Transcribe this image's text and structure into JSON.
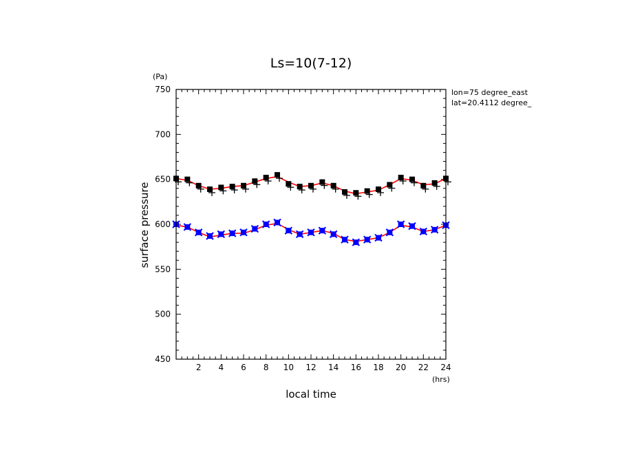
{
  "chart_data": {
    "type": "line",
    "title": "Ls=10(7-12)",
    "xlabel": "local time",
    "ylabel": "surface pressure",
    "x_unit": "(hrs)",
    "y_unit": "(Pa)",
    "xlim": [
      0,
      24
    ],
    "ylim": [
      450,
      750
    ],
    "x_ticks": [
      2,
      4,
      6,
      8,
      10,
      12,
      14,
      16,
      18,
      20,
      22,
      24
    ],
    "y_ticks": [
      450,
      500,
      550,
      600,
      650,
      700,
      750
    ],
    "annotations": [
      "lon=75 degree_east",
      "lat=20.4112 degree_"
    ],
    "colors": {
      "fit": "#ff0000",
      "upper_markers": "#000000",
      "lower_markers": "#0000ff"
    },
    "x": [
      0,
      1,
      2,
      3,
      4,
      5,
      6,
      7,
      8,
      9,
      10,
      11,
      12,
      13,
      14,
      15,
      16,
      17,
      18,
      19,
      20,
      21,
      22,
      23,
      24
    ],
    "series": [
      {
        "marker": "square-plus",
        "color": "#000000",
        "values": [
          651,
          650,
          643,
          639,
          641,
          642,
          643,
          648,
          652,
          655,
          645,
          642,
          643,
          647,
          643,
          636,
          635,
          637,
          639,
          644,
          652,
          650,
          643,
          646,
          651
        ],
        "fit": [
          651,
          649,
          643,
          639,
          640,
          642,
          643,
          647,
          651,
          653,
          647,
          642,
          643,
          646,
          643,
          637,
          634,
          636,
          638,
          644,
          651,
          649,
          644,
          645,
          651
        ]
      },
      {
        "marker": "square-x",
        "color": "#0000ff",
        "values": [
          600,
          597,
          591,
          587,
          589,
          590,
          591,
          595,
          600,
          602,
          593,
          589,
          591,
          593,
          589,
          583,
          580,
          583,
          585,
          591,
          600,
          598,
          592,
          594,
          599
        ],
        "fit": [
          599,
          597,
          591,
          586,
          588,
          590,
          590,
          594,
          599,
          601,
          594,
          589,
          591,
          593,
          590,
          583,
          581,
          583,
          585,
          591,
          599,
          597,
          592,
          594,
          599
        ]
      }
    ]
  }
}
